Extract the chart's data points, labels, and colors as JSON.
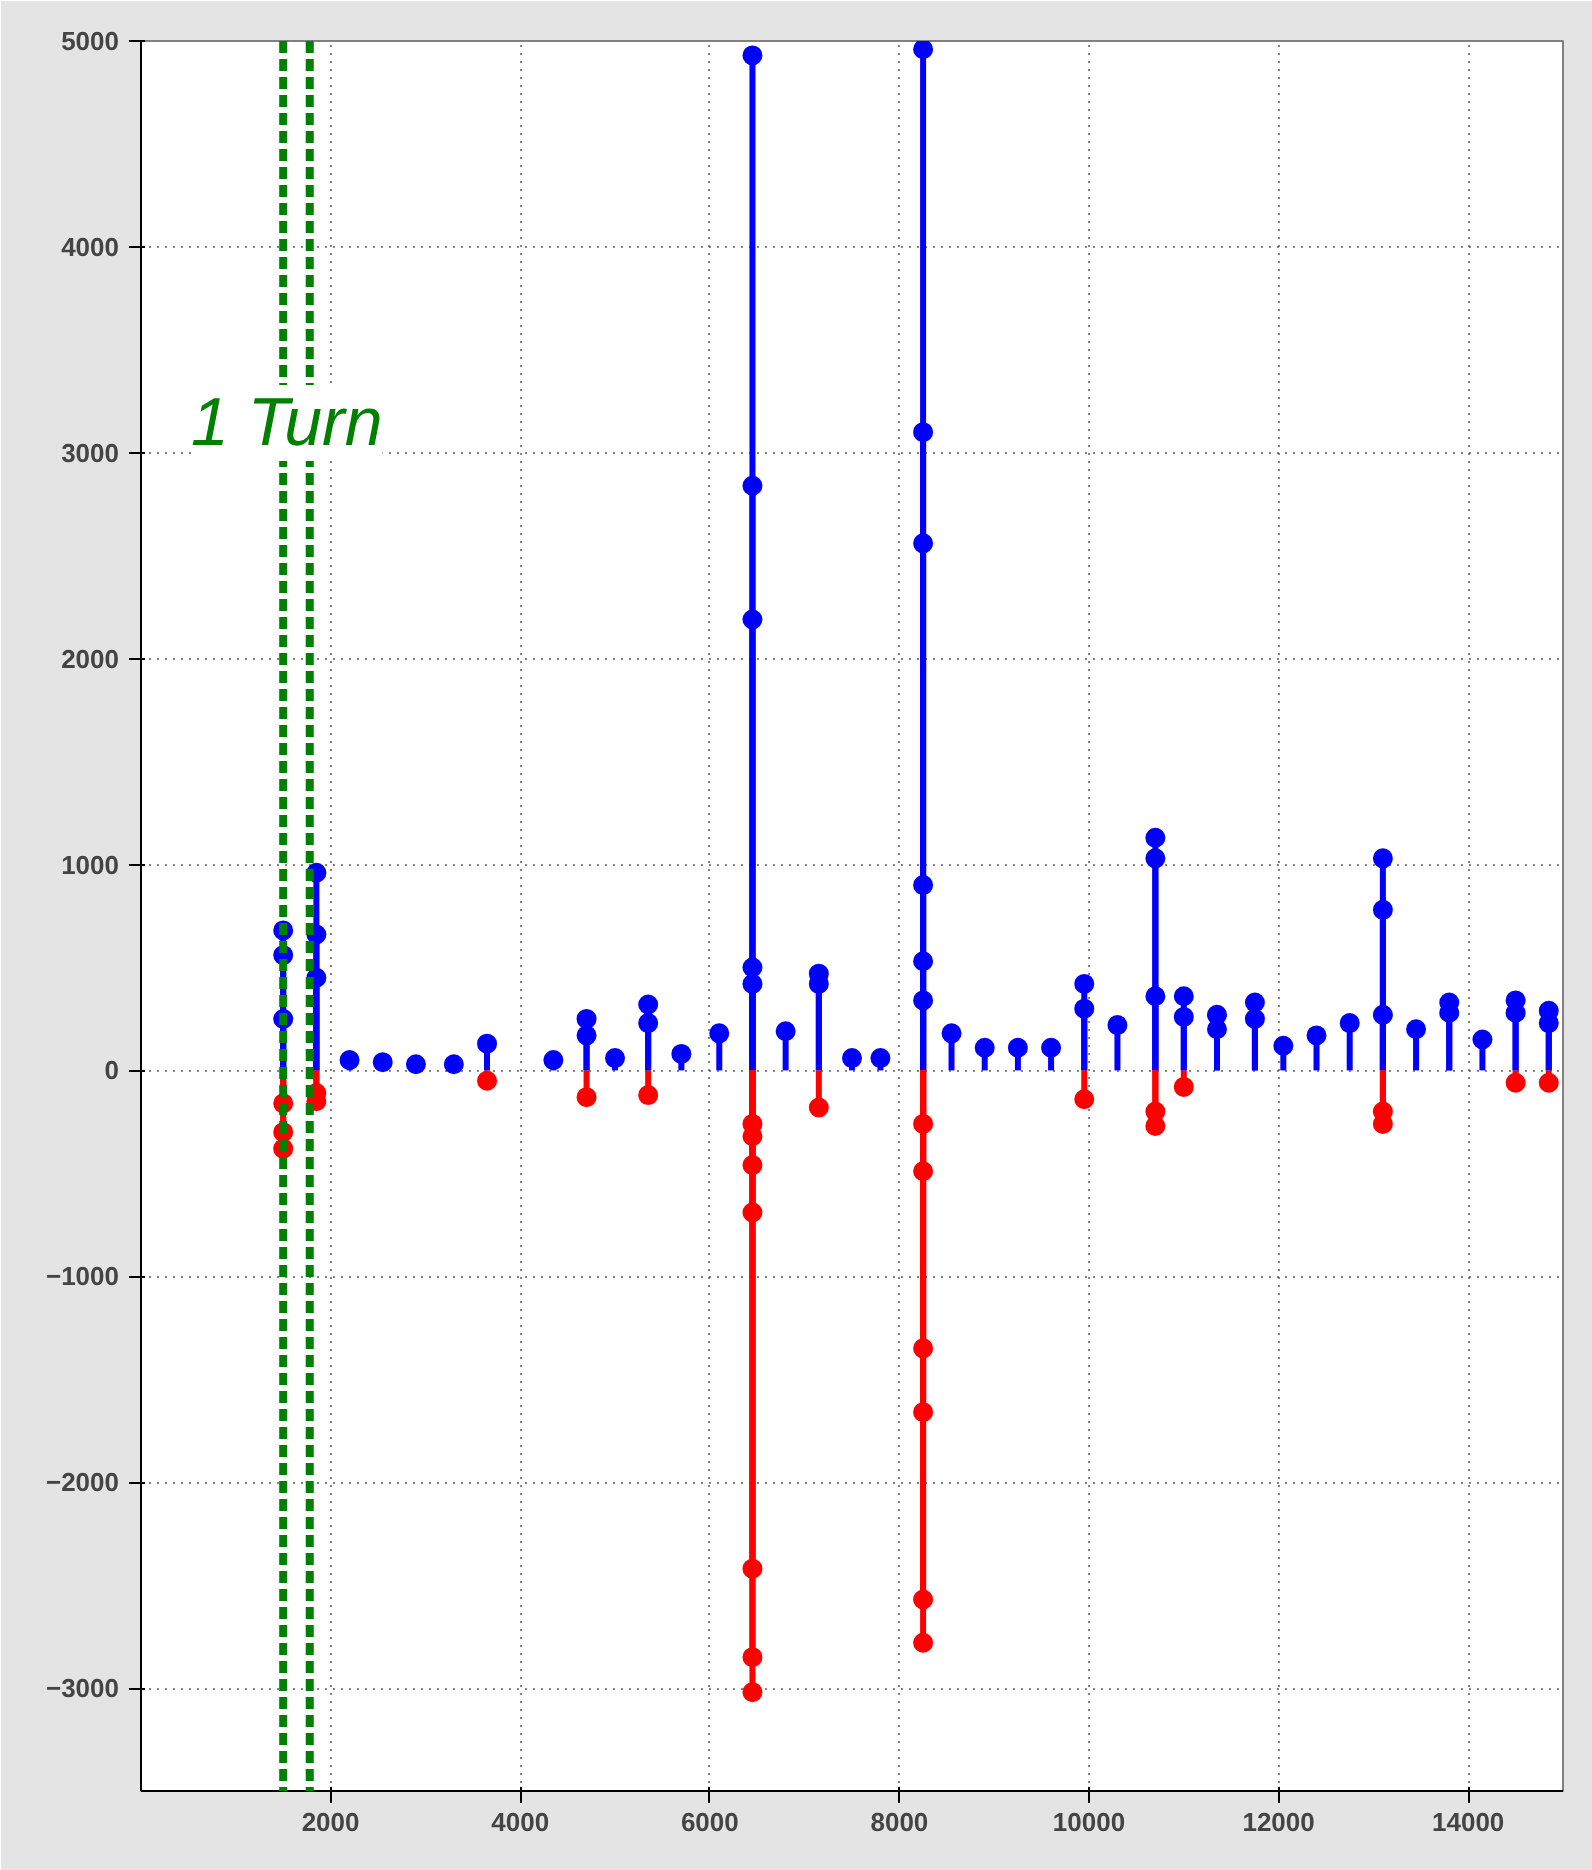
{
  "chart_data": {
    "type": "lollipop",
    "xlim": [
      0,
      15000
    ],
    "ylim": [
      -3500,
      5000
    ],
    "xticks": [
      2000,
      4000,
      6000,
      8000,
      10000,
      12000,
      14000
    ],
    "yticks": [
      -3000,
      -2000,
      -1000,
      0,
      1000,
      2000,
      3000,
      4000,
      5000
    ],
    "grid": true,
    "marker": "circle",
    "series": [
      {
        "color": "#0000ff",
        "x": [
          1500,
          1500,
          1500,
          1850,
          1850,
          1850,
          2200,
          2550,
          2900,
          3300,
          3650,
          4350,
          4700,
          4700,
          5000,
          5350,
          5350,
          5700,
          6100,
          6450,
          6450,
          6450,
          6450,
          6450,
          6800,
          7150,
          7150,
          7500,
          7800,
          8250,
          8250,
          8250,
          8250,
          8250,
          8250,
          8550,
          8900,
          9250,
          9600,
          9950,
          9950,
          10300,
          10700,
          10700,
          10700,
          11000,
          11000,
          11350,
          11350,
          11750,
          11750,
          12050,
          12400,
          12750,
          13100,
          13100,
          13100,
          13450,
          13800,
          13800,
          14150,
          14500,
          14500,
          14850,
          14850
        ],
        "values": [
          680,
          560,
          250,
          960,
          660,
          450,
          50,
          40,
          30,
          30,
          130,
          50,
          250,
          170,
          60,
          320,
          230,
          80,
          180,
          4930,
          2840,
          2190,
          500,
          420,
          190,
          470,
          420,
          60,
          60,
          4960,
          3100,
          2560,
          900,
          530,
          340,
          180,
          110,
          110,
          110,
          420,
          300,
          220,
          1130,
          1030,
          360,
          360,
          260,
          270,
          200,
          330,
          250,
          120,
          170,
          230,
          1030,
          780,
          270,
          200,
          330,
          280,
          150,
          340,
          280,
          290,
          230
        ]
      },
      {
        "color": "#ff0000",
        "x": [
          1500,
          1500,
          1500,
          1850,
          1850,
          3650,
          4700,
          5350,
          6450,
          6450,
          6450,
          6450,
          6450,
          6450,
          6450,
          7150,
          8250,
          8250,
          8250,
          8250,
          8250,
          8250,
          9950,
          10700,
          10700,
          11000,
          13100,
          13100,
          14500,
          14850
        ],
        "values": [
          -380,
          -300,
          -160,
          -150,
          -110,
          -50,
          -130,
          -120,
          -3020,
          -2850,
          -2420,
          -690,
          -460,
          -320,
          -260,
          -180,
          -2780,
          -2570,
          -1660,
          -1350,
          -490,
          -260,
          -140,
          -270,
          -200,
          -80,
          -260,
          -200,
          -60,
          -60
        ]
      }
    ],
    "ref_lines": [
      {
        "axis": "x",
        "value": 1500,
        "label": null,
        "color": "#008000",
        "line_style": "dashed"
      },
      {
        "axis": "x",
        "value": 1780,
        "label": null,
        "color": "#008000",
        "line_style": "dashed"
      }
    ],
    "annotations": [
      "1 Turn"
    ]
  }
}
